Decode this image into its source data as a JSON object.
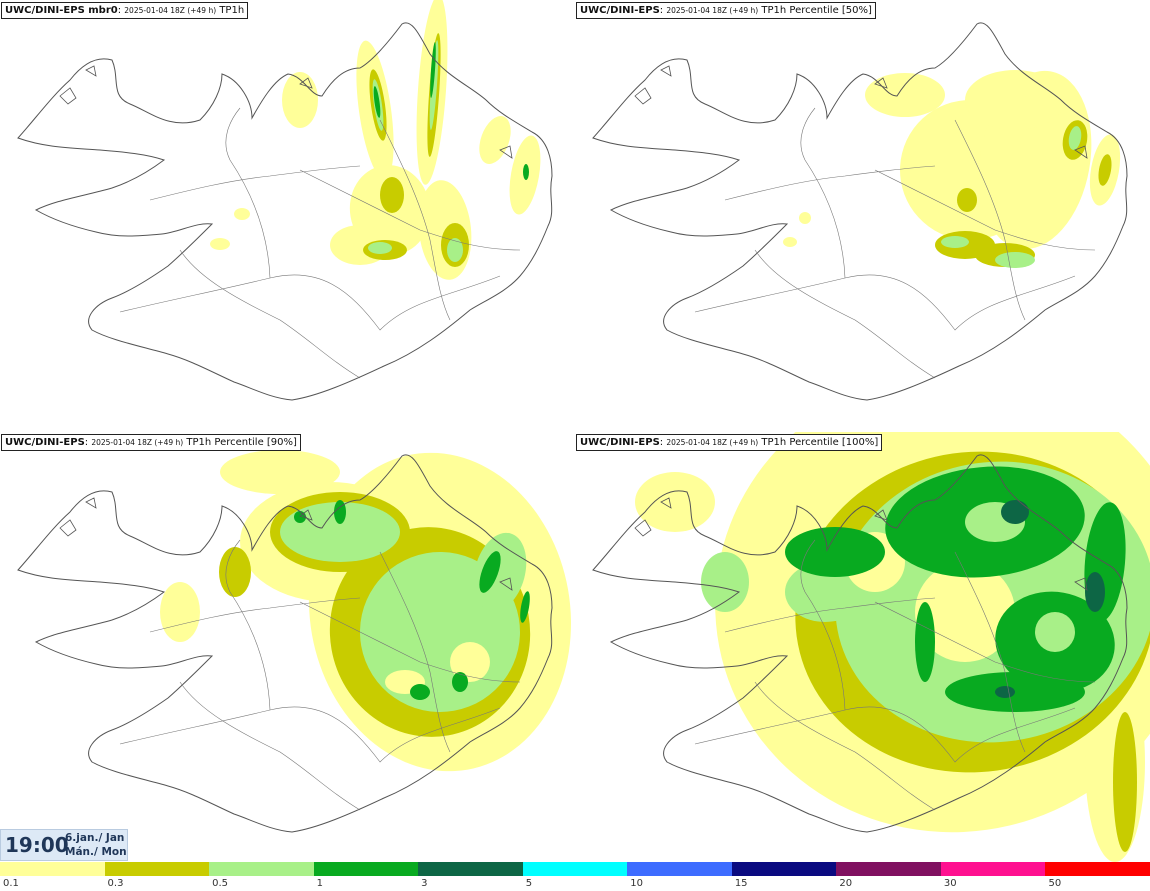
{
  "panels": [
    {
      "source": "UWC/DINI-EPS mbr0",
      "timestamp": "2025-01-04 18Z (+49 h)",
      "field": "TP1h"
    },
    {
      "source": "UWC/DINI-EPS",
      "timestamp": "2025-01-04 18Z (+49 h)",
      "field": "TP1h Percentile [50%]"
    },
    {
      "source": "UWC/DINI-EPS",
      "timestamp": "2025-01-04 18Z (+49 h)",
      "field": "TP1h Percentile [90%]"
    },
    {
      "source": "UWC/DINI-EPS",
      "timestamp": "2025-01-04 18Z (+49 h)",
      "field": "TP1h Percentile [100%]"
    }
  ],
  "valid_time": {
    "time": "19:00",
    "line1": "6.jan./ Jan",
    "line2": "Mán./ Mon"
  },
  "legend": {
    "labels": [
      "0.1",
      "0.3",
      "0.5",
      "1",
      "3",
      "5",
      "10",
      "15",
      "20",
      "30",
      "50"
    ],
    "colors": [
      "#ffff99",
      "#c8cc00",
      "#a8f088",
      "#08aa20",
      "#0d6645",
      "#00ffff",
      "#3d6cff",
      "#0a0a80",
      "#801060",
      "#ff1090",
      "#ff0000"
    ]
  },
  "map_colors": {
    "yellow": "#ffff99",
    "olive": "#c8cc00",
    "light_green": "#a8f088",
    "green": "#08aa20",
    "dark_green": "#0d6645"
  }
}
